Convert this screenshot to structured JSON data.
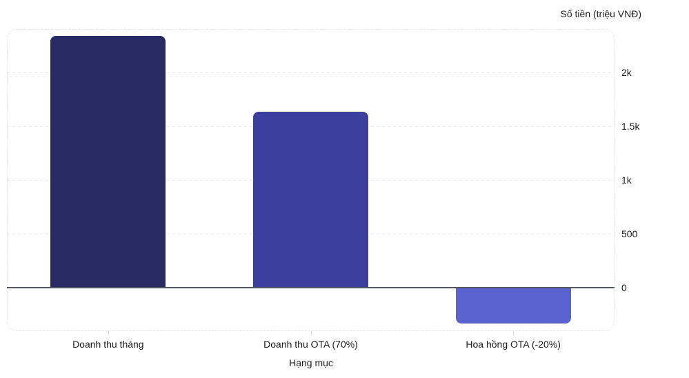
{
  "chart_data": {
    "type": "bar",
    "title": "",
    "categories": [
      "Doanh thu tháng",
      "Doanh thu OTA (70%)",
      "Hoa hồng OTA (-20%)"
    ],
    "values": [
      2333.33,
      1633.33,
      -326.67
    ],
    "bar_colors": [
      "#272a63",
      "#3c3f9e",
      "#5a62ce"
    ],
    "xlabel": "Hạng mục",
    "ylabel": "Số tiền (triệu VNĐ)",
    "ylim": [
      -400,
      2400
    ],
    "yticks": [
      {
        "value": 0,
        "label": "0"
      },
      {
        "value": 500,
        "label": "500"
      },
      {
        "value": 1000,
        "label": "1k"
      },
      {
        "value": 1500,
        "label": "1.5k"
      },
      {
        "value": 2000,
        "label": "2k"
      }
    ],
    "grid": "horizontal-dashed",
    "legend": "none",
    "colors": {
      "zero_axis_line": "#54585f",
      "gridline": "#e6e6e6",
      "plot_border": "#e3e3e3",
      "tick_text": "#1c1c1c"
    }
  }
}
